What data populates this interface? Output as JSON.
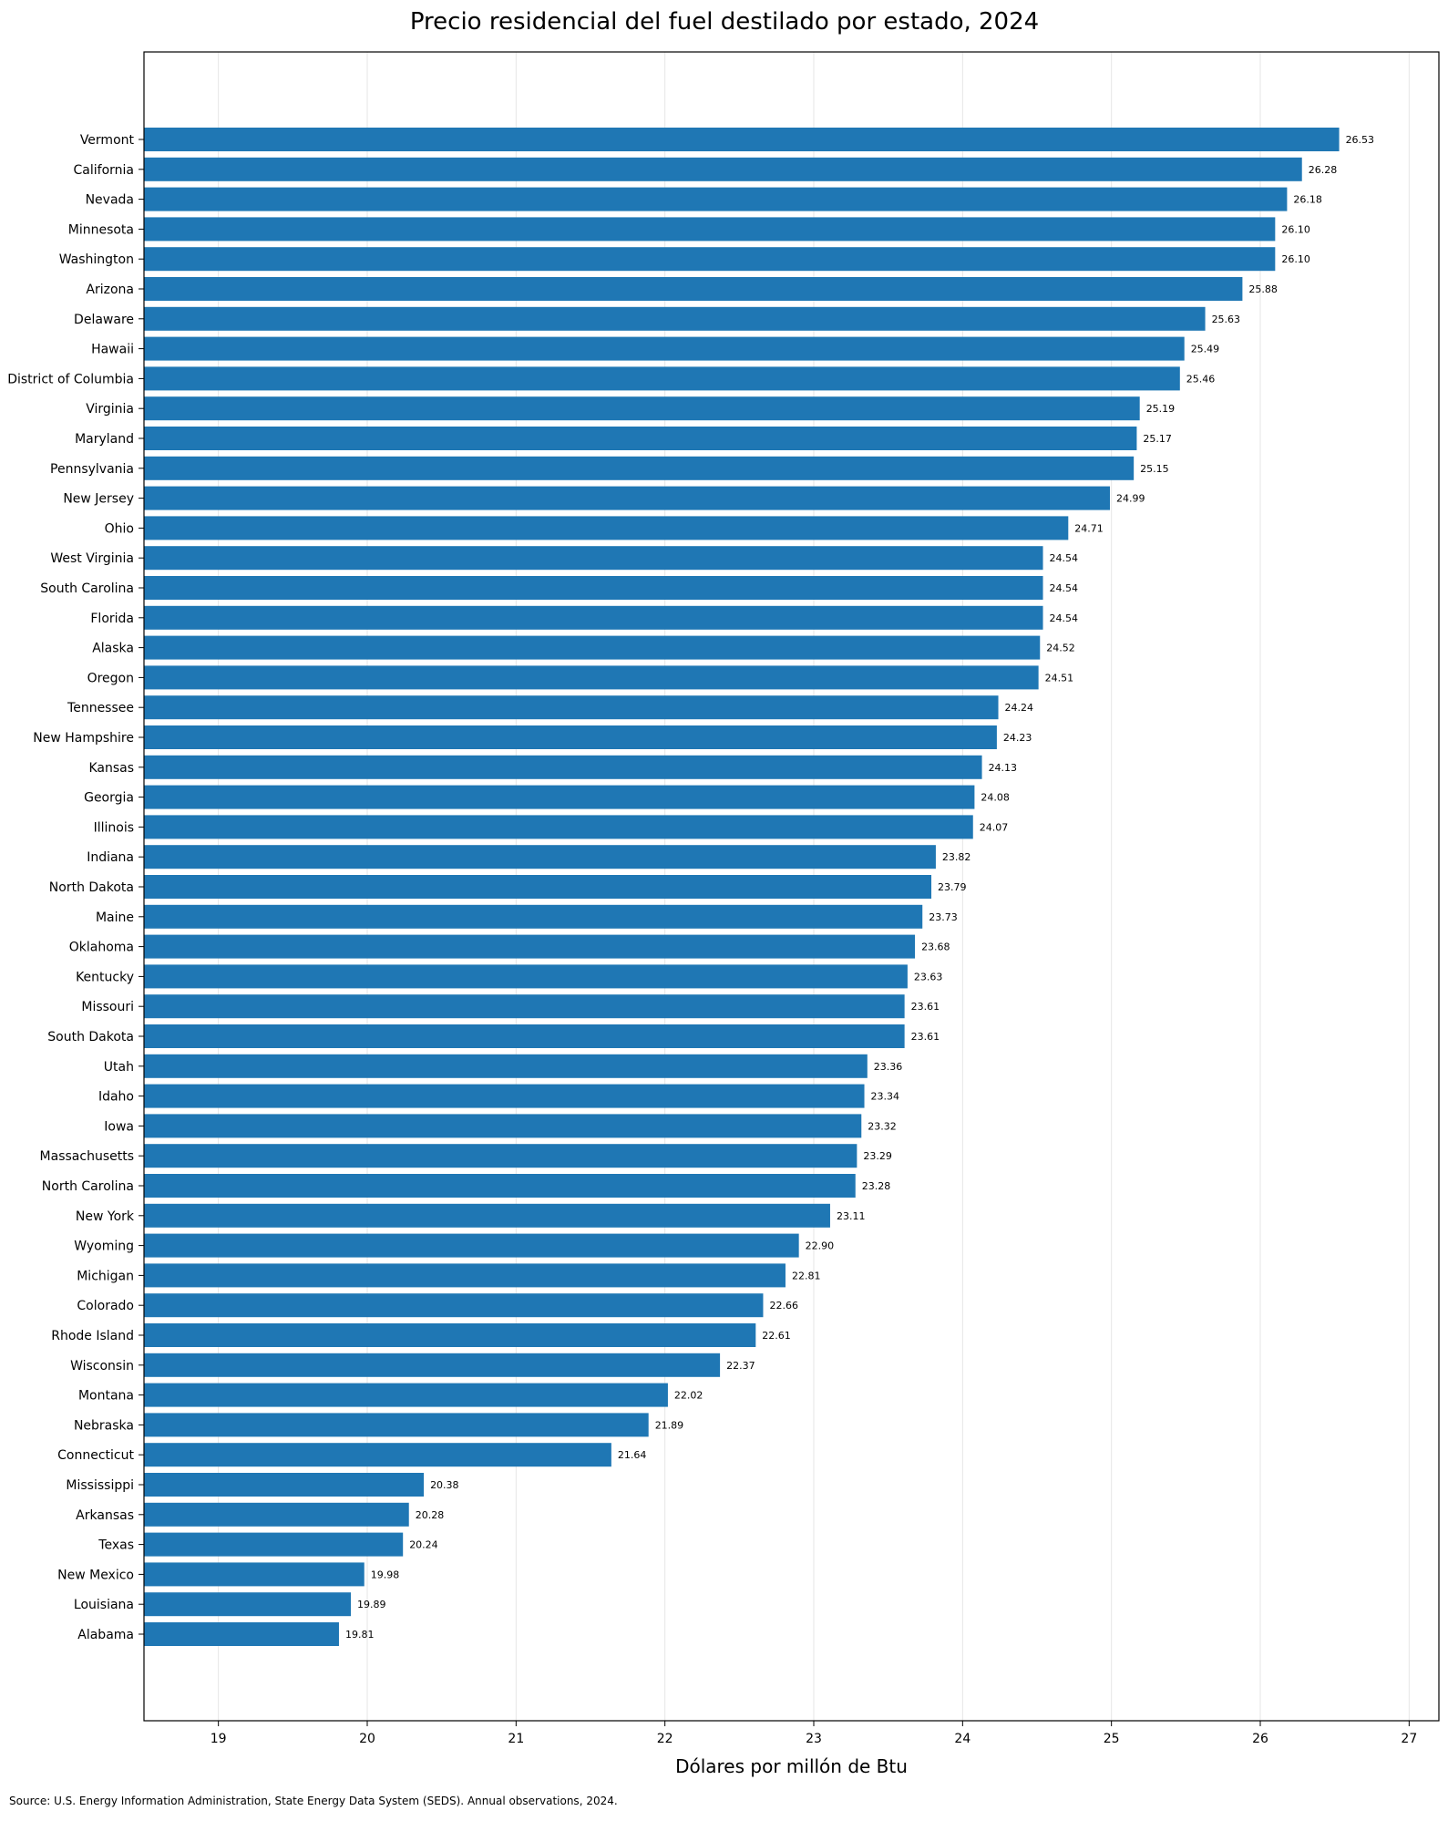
{
  "chart_data": {
    "type": "bar",
    "orientation": "horizontal",
    "title": "Precio residencial del fuel destilado por estado, 2024",
    "xlabel": "Dólares por millón de Btu",
    "ylabel": "",
    "xlim": [
      18.5,
      27.2
    ],
    "xticks": [
      19,
      20,
      21,
      22,
      23,
      24,
      25,
      26,
      27
    ],
    "grid": "x",
    "bar_color": "#1f77b4",
    "categories": [
      "Vermont",
      "California",
      "Nevada",
      "Minnesota",
      "Washington",
      "Arizona",
      "Delaware",
      "Hawaii",
      "District of Columbia",
      "Virginia",
      "Maryland",
      "Pennsylvania",
      "New Jersey",
      "Ohio",
      "West Virginia",
      "South Carolina",
      "Florida",
      "Alaska",
      "Oregon",
      "Tennessee",
      "New Hampshire",
      "Kansas",
      "Georgia",
      "Illinois",
      "Indiana",
      "North Dakota",
      "Maine",
      "Oklahoma",
      "Kentucky",
      "Missouri",
      "South Dakota",
      "Utah",
      "Idaho",
      "Iowa",
      "Massachusetts",
      "North Carolina",
      "New York",
      "Wyoming",
      "Michigan",
      "Colorado",
      "Rhode Island",
      "Wisconsin",
      "Montana",
      "Nebraska",
      "Connecticut",
      "Mississippi",
      "Arkansas",
      "Texas",
      "New Mexico",
      "Louisiana",
      "Alabama"
    ],
    "values": [
      26.53,
      26.28,
      26.18,
      26.1,
      26.1,
      25.88,
      25.63,
      25.49,
      25.46,
      25.19,
      25.17,
      25.15,
      24.99,
      24.71,
      24.54,
      24.54,
      24.54,
      24.52,
      24.51,
      24.24,
      24.23,
      24.13,
      24.08,
      24.07,
      23.82,
      23.79,
      23.73,
      23.68,
      23.63,
      23.61,
      23.61,
      23.36,
      23.34,
      23.32,
      23.29,
      23.28,
      23.11,
      22.9,
      22.81,
      22.66,
      22.61,
      22.37,
      22.02,
      21.89,
      21.64,
      20.38,
      20.28,
      20.24,
      19.98,
      19.89,
      19.81
    ]
  },
  "footer": {
    "source": "Source: U.S. Energy Information Administration, State Energy Data System (SEDS). Annual observations, 2024."
  }
}
